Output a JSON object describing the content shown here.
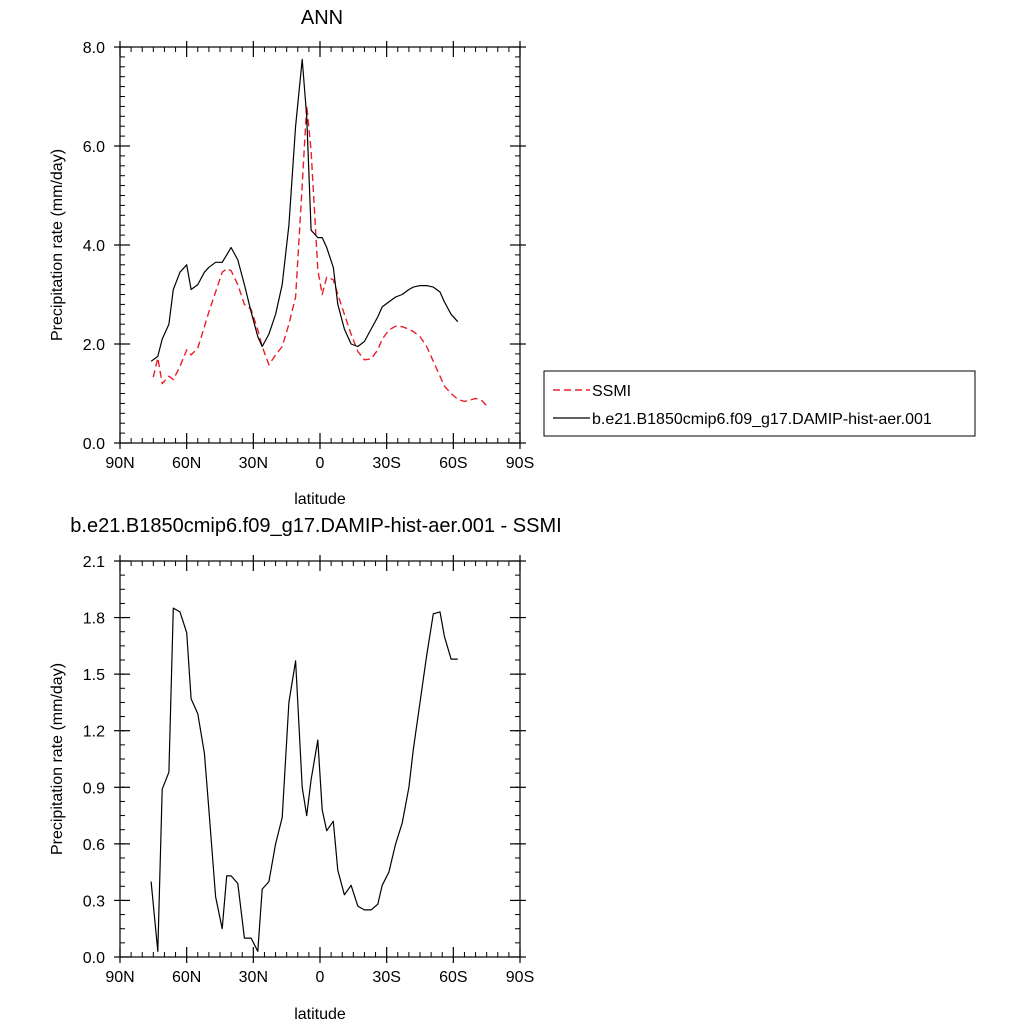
{
  "colors": {
    "model": "#000000",
    "obs": "#e8202a"
  },
  "legend": {
    "placement": "right-of-top-panel",
    "entries": [
      "SSMI",
      "b.e21.B1850cmip6.f09_g17.DAMIP-hist-aer.001"
    ]
  },
  "chart_data": [
    {
      "type": "line",
      "title": "ANN",
      "xlabel": "latitude",
      "ylabel": "Precipitation rate (mm/day)",
      "xlim": [
        90,
        -90
      ],
      "ylim": [
        0,
        8
      ],
      "x_tick_values": [
        90,
        60,
        30,
        0,
        -30,
        -60,
        -90
      ],
      "x_tick_labels": [
        "90N",
        "60N",
        "30N",
        "0",
        "30S",
        "60S",
        "90S"
      ],
      "y_tick_values": [
        0,
        2,
        4,
        6,
        8
      ],
      "y_tick_labels": [
        "0.0",
        "2.0",
        "4.0",
        "6.0",
        "8.0"
      ],
      "grid": false,
      "series": [
        {
          "name": "SSMI",
          "style": "dashed",
          "color": "#e8202a",
          "x": [
            75,
            73,
            71,
            68,
            66,
            63,
            60,
            58,
            55,
            52,
            50,
            47,
            44,
            42,
            40,
            37,
            34,
            31,
            28,
            26,
            23,
            20,
            17,
            14,
            11,
            8,
            6,
            4,
            1,
            -1,
            -3,
            -6,
            -8,
            -11,
            -14,
            -17,
            -20,
            -23,
            -26,
            -28,
            -31,
            -34,
            -37,
            -40,
            -42,
            -45,
            -48,
            -51,
            -54,
            -56,
            -59,
            -62,
            -65,
            -67,
            -70,
            -73,
            -75
          ],
          "y": [
            1.33,
            1.72,
            1.2,
            1.35,
            1.28,
            1.55,
            1.88,
            1.78,
            1.92,
            2.35,
            2.65,
            3.05,
            3.45,
            3.52,
            3.48,
            3.2,
            2.8,
            2.7,
            2.28,
            1.95,
            1.58,
            1.78,
            1.95,
            2.4,
            2.95,
            5.2,
            6.82,
            5.9,
            3.5,
            3.0,
            3.35,
            3.3,
            3.0,
            2.6,
            2.2,
            1.85,
            1.68,
            1.7,
            1.88,
            2.1,
            2.28,
            2.36,
            2.35,
            2.3,
            2.25,
            2.15,
            1.95,
            1.65,
            1.35,
            1.15,
            1.0,
            0.88,
            0.84,
            0.86,
            0.9,
            0.85,
            0.75
          ]
        },
        {
          "name": "b.e21.B1850cmip6.f09_g17.DAMIP-hist-aer.001",
          "style": "solid",
          "color": "#000000",
          "x": [
            76,
            73,
            71,
            68,
            66,
            63,
            60,
            58,
            55,
            52,
            50,
            47,
            44,
            42,
            40,
            37,
            34,
            31,
            28,
            26,
            23,
            20,
            17,
            14,
            11,
            8,
            6,
            4,
            1,
            -1,
            -3,
            -6,
            -8,
            -11,
            -14,
            -17,
            -20,
            -23,
            -26,
            -28,
            -31,
            -34,
            -37,
            -40,
            -42,
            -45,
            -48,
            -51,
            -54,
            -56,
            -59,
            -62
          ],
          "y": [
            1.65,
            1.75,
            2.1,
            2.4,
            3.1,
            3.45,
            3.6,
            3.1,
            3.2,
            3.45,
            3.55,
            3.65,
            3.65,
            3.8,
            3.95,
            3.7,
            3.2,
            2.65,
            2.15,
            1.95,
            2.2,
            2.6,
            3.2,
            4.4,
            6.4,
            7.75,
            6.6,
            4.3,
            4.15,
            4.15,
            3.95,
            3.55,
            2.8,
            2.3,
            2.0,
            1.95,
            2.05,
            2.3,
            2.55,
            2.75,
            2.85,
            2.95,
            3.0,
            3.1,
            3.15,
            3.18,
            3.18,
            3.15,
            3.05,
            2.85,
            2.6,
            2.45
          ]
        }
      ]
    },
    {
      "type": "line",
      "title": "b.e21.B1850cmip6.f09_g17.DAMIP-hist-aer.001 - SSMI",
      "xlabel": "latitude",
      "ylabel": "Precipitation rate (mm/day)",
      "xlim": [
        90,
        -90
      ],
      "ylim": [
        0,
        2.1
      ],
      "x_tick_values": [
        90,
        60,
        30,
        0,
        -30,
        -60,
        -90
      ],
      "x_tick_labels": [
        "90N",
        "60N",
        "30N",
        "0",
        "30S",
        "60S",
        "90S"
      ],
      "y_tick_values": [
        0,
        0.3,
        0.6,
        0.9,
        1.2,
        1.5,
        1.8,
        2.1
      ],
      "y_tick_labels": [
        "0.0",
        "0.3",
        "0.6",
        "0.9",
        "1.2",
        "1.5",
        "1.8",
        "2.1"
      ],
      "grid": false,
      "series": [
        {
          "style": "solid",
          "color": "#000000",
          "x": [
            76,
            73,
            71,
            68,
            66,
            63,
            60,
            58,
            55,
            52,
            50,
            47,
            44,
            42,
            40,
            37,
            34,
            31,
            28,
            26,
            23,
            20,
            17,
            14,
            11,
            8,
            6,
            4,
            1,
            -1,
            -3,
            -6,
            -8,
            -11,
            -14,
            -17,
            -20,
            -23,
            -26,
            -28,
            -31,
            -34,
            -37,
            -40,
            -42,
            -45,
            -48,
            -51,
            -54,
            -56,
            -59,
            -62
          ],
          "y": [
            0.4,
            0.03,
            0.89,
            0.98,
            1.85,
            1.83,
            1.72,
            1.37,
            1.29,
            1.08,
            0.78,
            0.32,
            0.15,
            0.43,
            0.43,
            0.39,
            0.1,
            0.1,
            0.03,
            0.36,
            0.4,
            0.6,
            0.74,
            1.35,
            1.57,
            0.9,
            0.75,
            0.94,
            1.15,
            0.78,
            0.67,
            0.72,
            0.46,
            0.33,
            0.38,
            0.27,
            0.25,
            0.25,
            0.28,
            0.38,
            0.45,
            0.6,
            0.71,
            0.9,
            1.1,
            1.35,
            1.6,
            1.82,
            1.83,
            1.7,
            1.58,
            1.58
          ]
        }
      ]
    }
  ]
}
